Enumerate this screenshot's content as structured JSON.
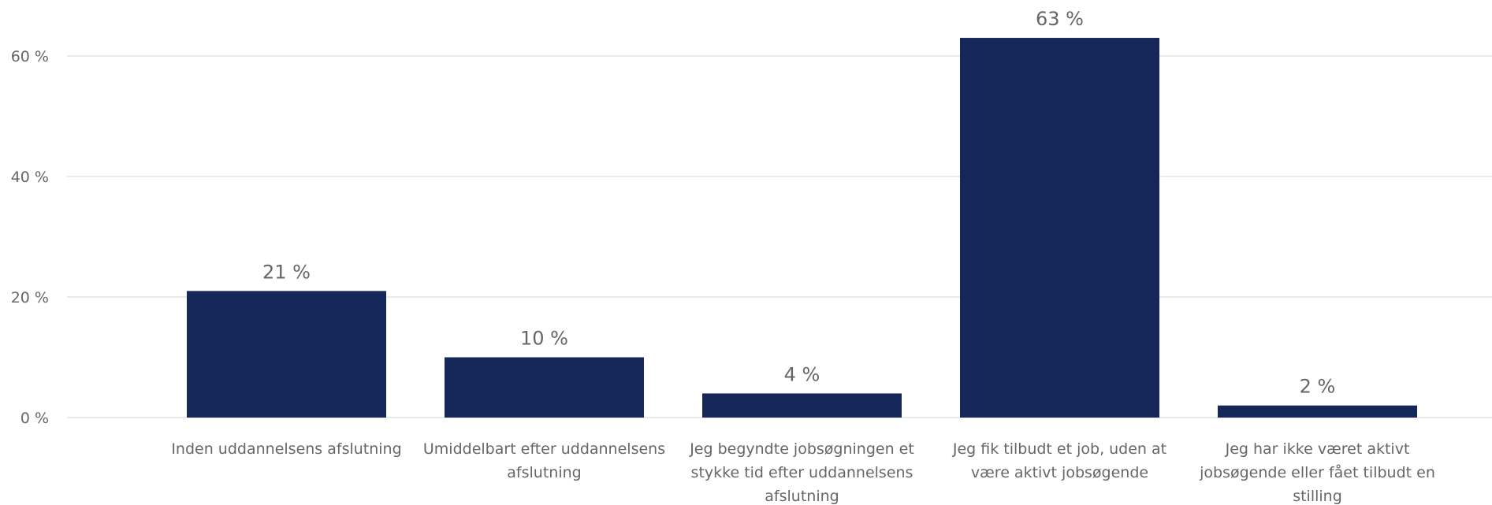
{
  "chart_data": {
    "type": "bar",
    "categories": [
      [
        "Inden uddannelsens afslutning"
      ],
      [
        "Umiddelbart efter uddannelsens",
        "afslutning"
      ],
      [
        "Jeg begyndte jobsøgningen et",
        "stykke tid efter uddannelsens",
        "afslutning"
      ],
      [
        "Jeg fik tilbudt et job, uden at",
        "være aktivt jobsøgende"
      ],
      [
        "Jeg har ikke været aktivt",
        "jobsøgende eller fået tilbudt en",
        "stilling"
      ]
    ],
    "values": [
      21,
      10,
      4,
      63,
      2
    ],
    "data_labels": [
      "21 %",
      "10 %",
      "4 %",
      "63 %",
      "2 %"
    ],
    "ylim": [
      0,
      60
    ],
    "yticks": [
      0,
      20,
      40,
      60
    ],
    "ytick_labels": [
      "0 %",
      "20 %",
      "40 %",
      "60 %"
    ],
    "grid": true,
    "bar_color": "#152659"
  }
}
